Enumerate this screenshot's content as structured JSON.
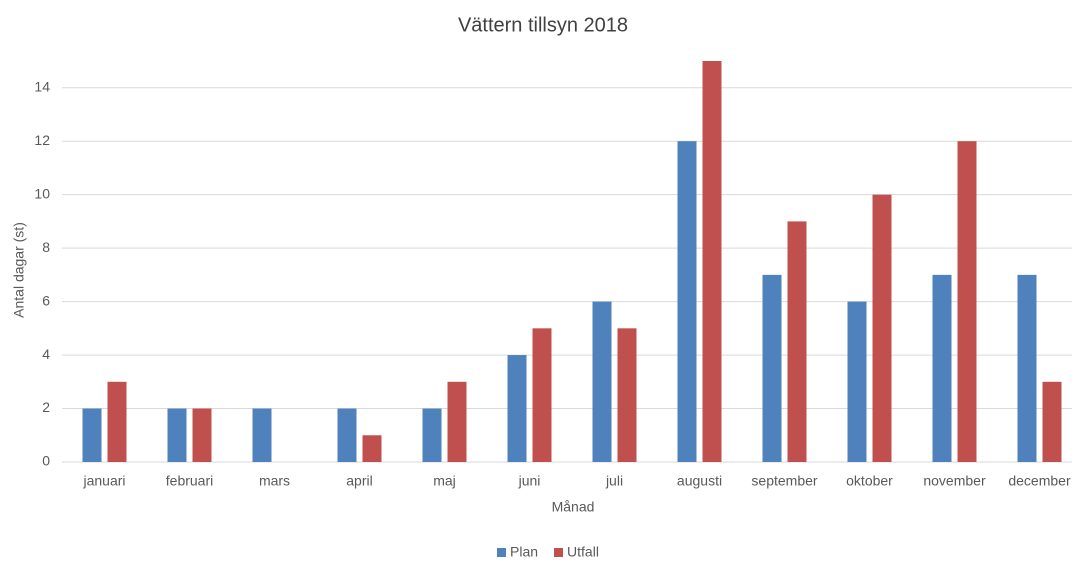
{
  "chart_data": {
    "type": "bar",
    "title": "Vättern tillsyn 2018",
    "x_label": "Månad",
    "y_label": "Antal dagar (st)",
    "categories": [
      "januari",
      "februari",
      "mars",
      "april",
      "maj",
      "juni",
      "juli",
      "augusti",
      "september",
      "oktober",
      "november",
      "december"
    ],
    "series": [
      {
        "name": "Plan",
        "color": "#4f81bd",
        "values": [
          2,
          2,
          2,
          2,
          2,
          4,
          6,
          12,
          7,
          6,
          7,
          7
        ]
      },
      {
        "name": "Utfall",
        "color": "#c0504d",
        "values": [
          3,
          2,
          0,
          1,
          3,
          5,
          5,
          15,
          9,
          10,
          12,
          3
        ]
      }
    ],
    "ylim": [
      0,
      15
    ],
    "yticks": [
      0,
      2,
      4,
      6,
      8,
      10,
      12,
      14
    ],
    "grid": true,
    "legend": "bottom"
  }
}
